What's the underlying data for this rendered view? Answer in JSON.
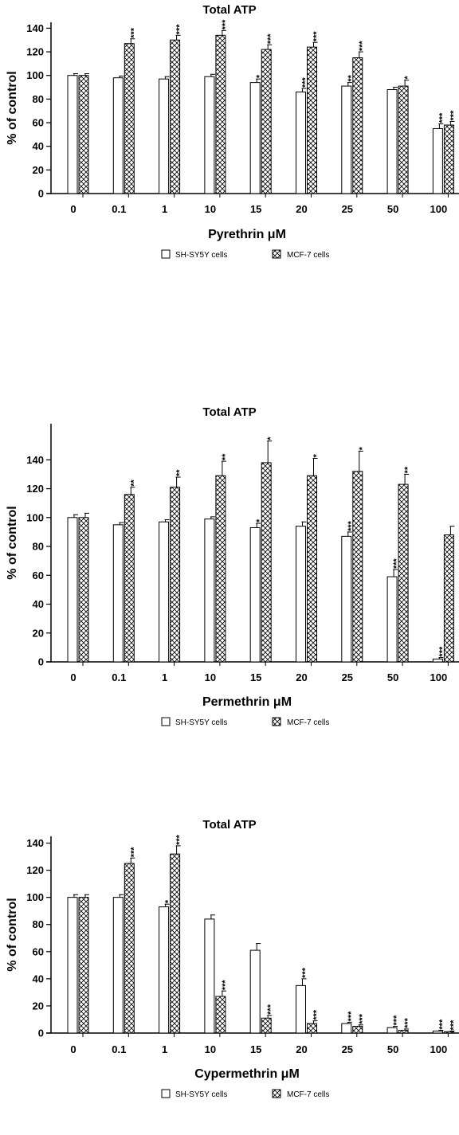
{
  "chart_data": [
    {
      "type": "bar",
      "title": "Total ATP",
      "ylabel": "% of control",
      "xlabel": "Pyrethrin μM",
      "ylim": [
        0,
        145
      ],
      "yticks": [
        0,
        20,
        40,
        60,
        80,
        100,
        120,
        140
      ],
      "categories": [
        "0",
        "0.1",
        "1",
        "10",
        "15",
        "20",
        "25",
        "50",
        "100"
      ],
      "series": [
        {
          "name": "SH-SY5Y cells",
          "pattern": "open",
          "values": [
            100,
            98,
            97,
            99,
            94,
            86,
            91,
            88,
            55
          ],
          "errors": [
            1.5,
            1.5,
            2,
            2,
            3,
            3,
            3,
            2,
            4
          ],
          "significance": [
            "",
            "",
            "",
            "",
            "*",
            "***",
            "**",
            "",
            "***"
          ]
        },
        {
          "name": "MCF-7 cells",
          "pattern": "crosshatch",
          "values": [
            100,
            127,
            130,
            134,
            122,
            124,
            115,
            91,
            58
          ],
          "errors": [
            1.5,
            4,
            4,
            4,
            4,
            4,
            5,
            5,
            3
          ],
          "significance": [
            "",
            "***",
            "***",
            "***",
            "***",
            "***",
            "***",
            "*",
            "***"
          ]
        }
      ]
    },
    {
      "type": "bar",
      "title": "Total ATP",
      "ylabel": "% of control",
      "xlabel": "Permethrin μM",
      "ylim": [
        0,
        165
      ],
      "yticks": [
        0,
        20,
        40,
        60,
        80,
        100,
        120,
        140
      ],
      "categories": [
        "0",
        "0.1",
        "1",
        "10",
        "15",
        "20",
        "25",
        "50",
        "100"
      ],
      "series": [
        {
          "name": "SH-SY5Y cells",
          "pattern": "open",
          "values": [
            100,
            95,
            97,
            99,
            93,
            94,
            87,
            59,
            2
          ],
          "errors": [
            2,
            1.5,
            1.5,
            1.5,
            3,
            3,
            3,
            5,
            1
          ],
          "significance": [
            "",
            "",
            "",
            "",
            "*",
            "",
            "***",
            "***",
            "***"
          ]
        },
        {
          "name": "MCF-7 cells",
          "pattern": "crosshatch",
          "values": [
            100,
            116,
            121,
            129,
            138,
            129,
            132,
            123,
            88
          ],
          "errors": [
            3,
            5,
            7,
            10,
            15,
            12,
            14,
            7,
            6
          ],
          "significance": [
            "",
            "**",
            "**",
            "**",
            "*",
            "*",
            "*",
            "**",
            ""
          ]
        }
      ]
    },
    {
      "type": "bar",
      "title": "Total ATP",
      "ylabel": "% of control",
      "xlabel": "Cypermethrin μM",
      "ylim": [
        0,
        145
      ],
      "yticks": [
        0,
        20,
        40,
        60,
        80,
        100,
        120,
        140
      ],
      "categories": [
        "0",
        "0.1",
        "1",
        "10",
        "15",
        "20",
        "25",
        "50",
        "100"
      ],
      "series": [
        {
          "name": "SH-SY5Y cells",
          "pattern": "open",
          "values": [
            100,
            100,
            93,
            84,
            61,
            35,
            7,
            4,
            1.5
          ],
          "errors": [
            2,
            2,
            2,
            3,
            5,
            5,
            1,
            1,
            0.5
          ],
          "significance": [
            "",
            "",
            "*",
            "",
            "",
            "***",
            "***",
            "***",
            "***"
          ]
        },
        {
          "name": "MCF-7 cells",
          "pattern": "crosshatch",
          "values": [
            100,
            125,
            132,
            27,
            11,
            7,
            5,
            2,
            1
          ],
          "errors": [
            2,
            4,
            6,
            4,
            2,
            2,
            1,
            1,
            0.5
          ],
          "significance": [
            "",
            "***",
            "***",
            "***",
            "***",
            "***",
            "***",
            "***",
            "***"
          ]
        }
      ]
    }
  ]
}
